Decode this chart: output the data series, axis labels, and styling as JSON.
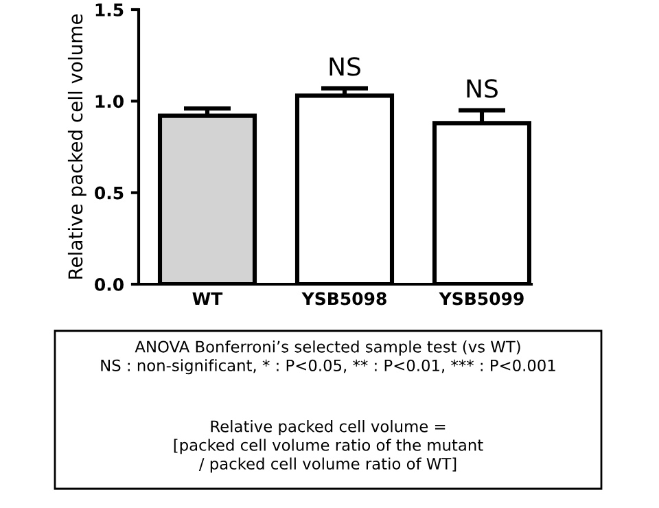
{
  "chart_data": {
    "type": "bar",
    "categories": [
      "WT",
      "YSB5098",
      "YSB5099"
    ],
    "values": [
      0.92,
      1.03,
      0.88
    ],
    "colors": [
      "#d3d3d3",
      "#ffffff",
      "#ffffff"
    ],
    "errors": [
      [
        0.92,
        0.96
      ],
      [
        1.03,
        1.07
      ],
      [
        0.88,
        0.95
      ]
    ],
    "ylabel": "Relative packed cell volume",
    "ylim": [
      0,
      1.5
    ],
    "yticks": [
      {
        "value": 0,
        "label": "0.0"
      },
      {
        "value": 0.5,
        "label": "0.5"
      },
      {
        "value": 1,
        "label": "1.0"
      },
      {
        "value": 1.5,
        "label": "1.5"
      }
    ],
    "grid": false,
    "legend": false,
    "annotations": [
      {
        "text": "NS",
        "x": "YSB5098",
        "y": 1.07
      },
      {
        "text": "NS",
        "x": "YSB5099",
        "y": 0.95
      },
      "ANOVA Bonferroni’s selected sample test (vs WT)\nNS : non-significant, * : P<0.05, ** : P<0.01, *** : P<0.001",
      "Relative packed cell volume =\n[packed cell volume ratio of the mutant\n/ packed cell volume ratio of WT]"
    ]
  }
}
